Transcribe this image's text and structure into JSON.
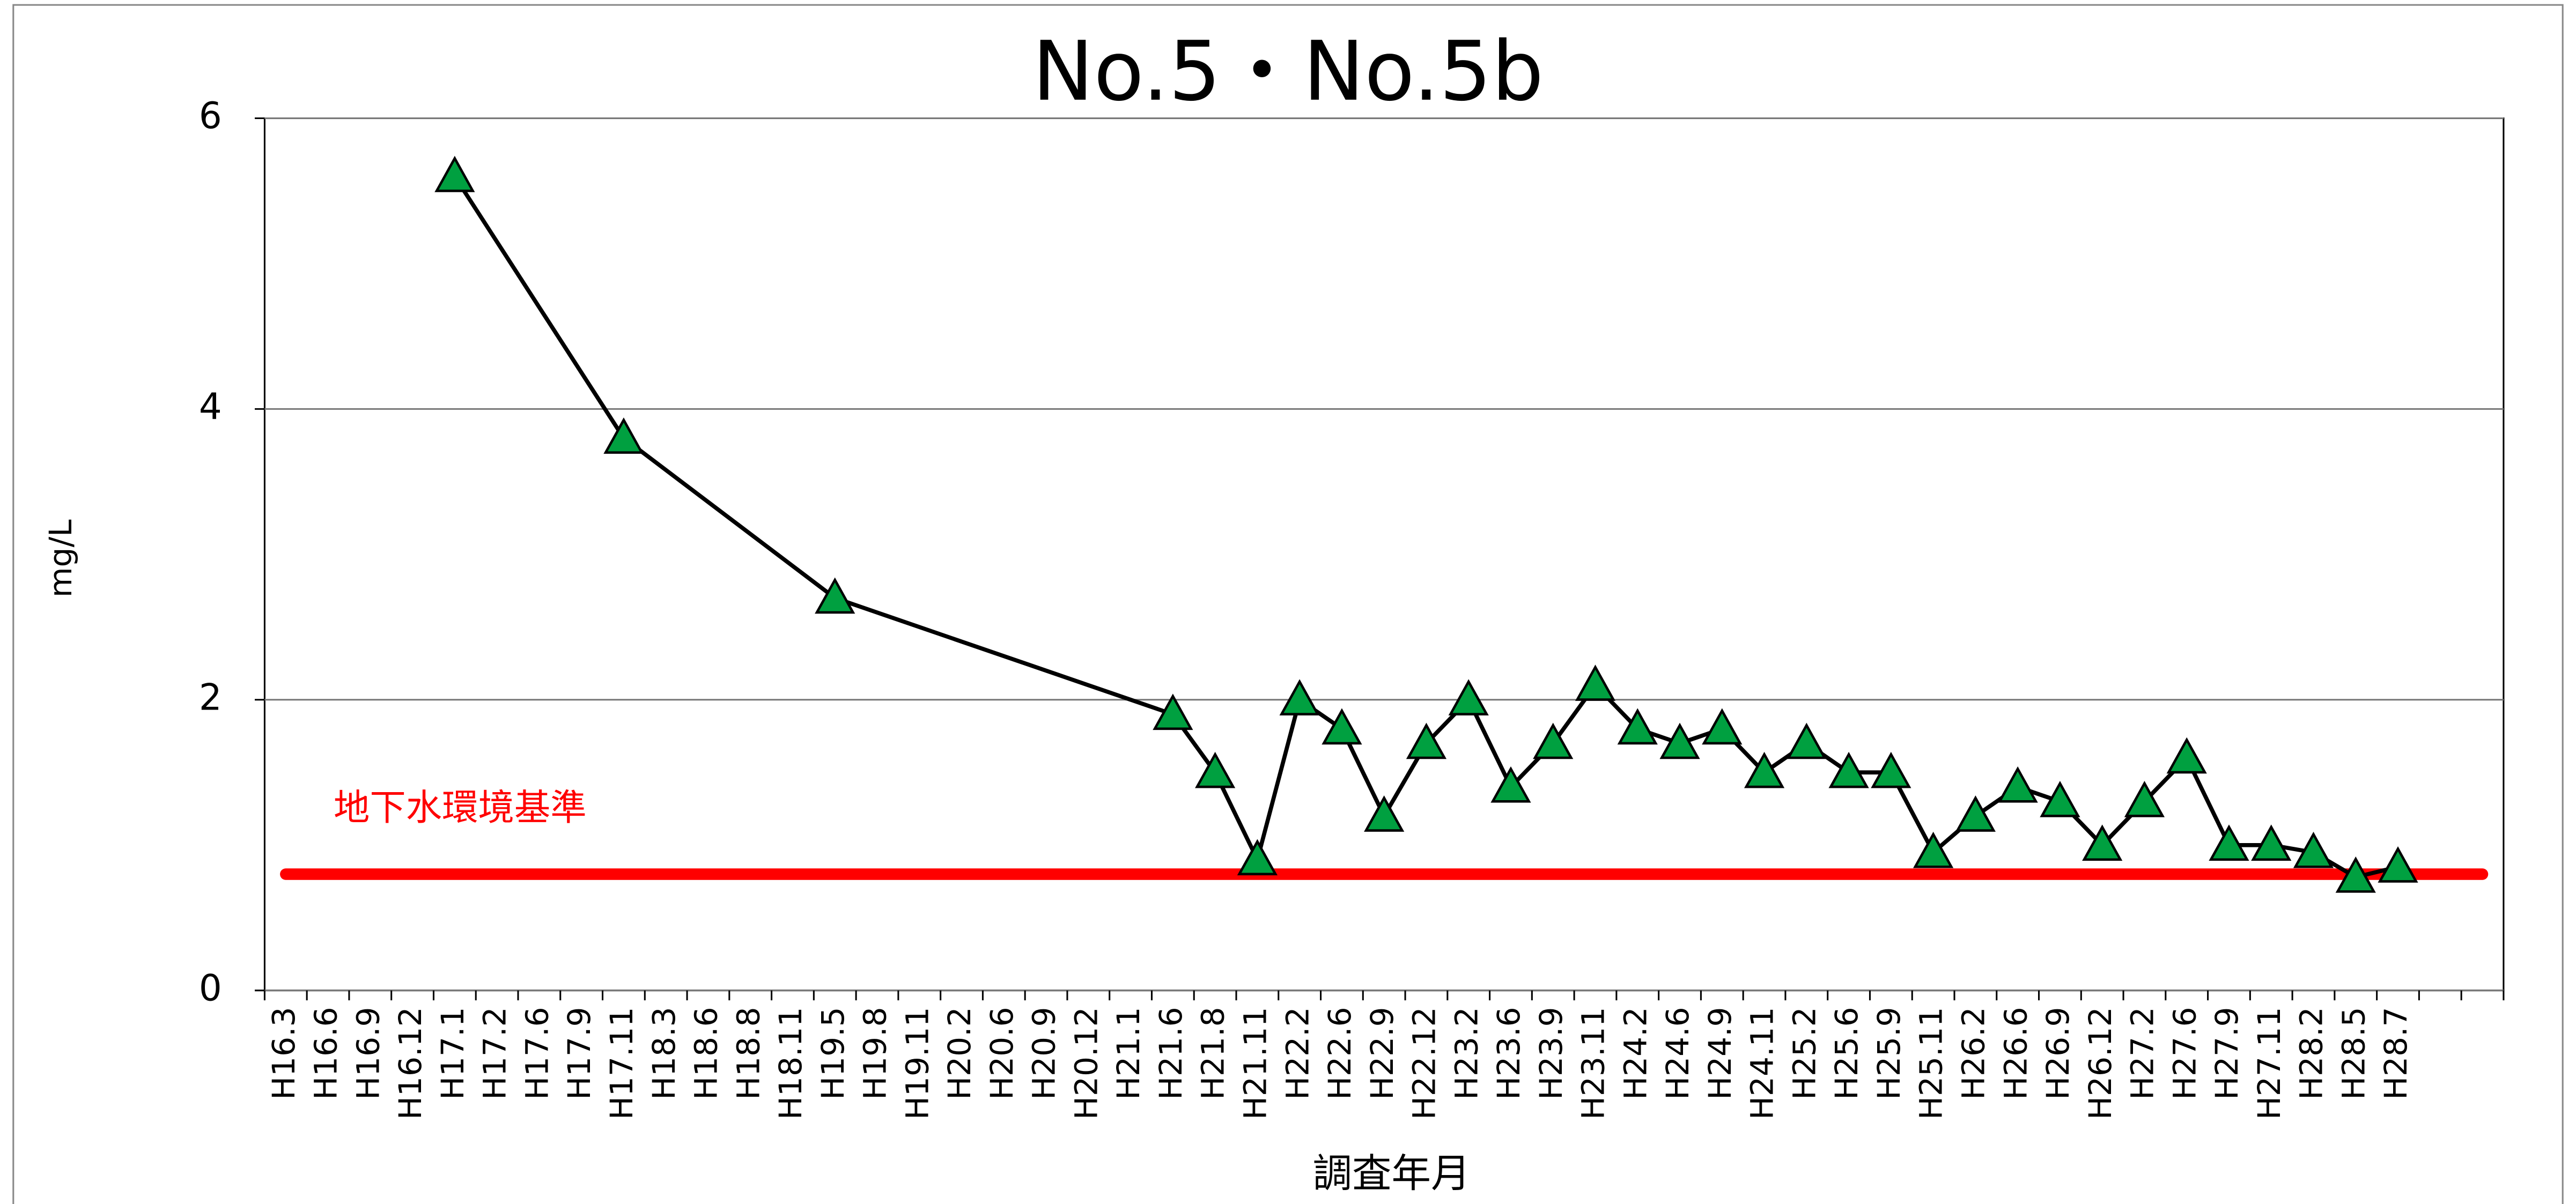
{
  "chart_data": {
    "type": "line",
    "title": "No.5・No.5b",
    "x_label": "調査年月",
    "y_label": "mg/L",
    "categories": [
      "H16.3",
      "H16.6",
      "H16.9",
      "H16.12",
      "H17.1",
      "H17.2",
      "H17.6",
      "H17.9",
      "H17.11",
      "H18.3",
      "H18.6",
      "H18.8",
      "H18.11",
      "H19.5",
      "H19.8",
      "H19.11",
      "H20.2",
      "H20.6",
      "H20.9",
      "H20.12",
      "H21.1",
      "H21.6",
      "H21.8",
      "H21.11",
      "H22.2",
      "H22.6",
      "H22.9",
      "H22.12",
      "H23.2",
      "H23.6",
      "H23.9",
      "H23.11",
      "H24.2",
      "H24.6",
      "H24.9",
      "H24.11",
      "H25.2",
      "H25.6",
      "H25.9",
      "H25.11",
      "H26.2",
      "H26.6",
      "H26.9",
      "H26.12",
      "H27.2",
      "H27.6",
      "H27.9",
      "H27.11",
      "H28.2",
      "H28.5",
      "H28.7",
      null,
      null
    ],
    "series": [
      {
        "color": "#00a040",
        "line_color": "#000000",
        "marker": "triangle",
        "connect_gaps": true,
        "values": [
          null,
          null,
          null,
          null,
          5.6,
          null,
          null,
          null,
          3.8,
          null,
          null,
          null,
          null,
          2.7,
          null,
          null,
          null,
          null,
          null,
          null,
          null,
          1.9,
          1.5,
          0.9,
          2.0,
          1.8,
          1.2,
          1.7,
          2.0,
          1.4,
          1.7,
          2.1,
          1.8,
          1.7,
          1.8,
          1.5,
          1.7,
          1.5,
          1.5,
          0.95,
          1.2,
          1.4,
          1.3,
          1.0,
          1.3,
          1.6,
          1.0,
          1.0,
          0.95,
          0.78,
          0.85,
          null,
          null
        ]
      }
    ],
    "reference_lines": [
      {
        "value": 0.8,
        "label": "地下水環境基準",
        "color": "#ff0000"
      }
    ],
    "ylim": [
      0,
      6
    ],
    "yticks": [
      0,
      2,
      4,
      6
    ],
    "grid": true
  }
}
